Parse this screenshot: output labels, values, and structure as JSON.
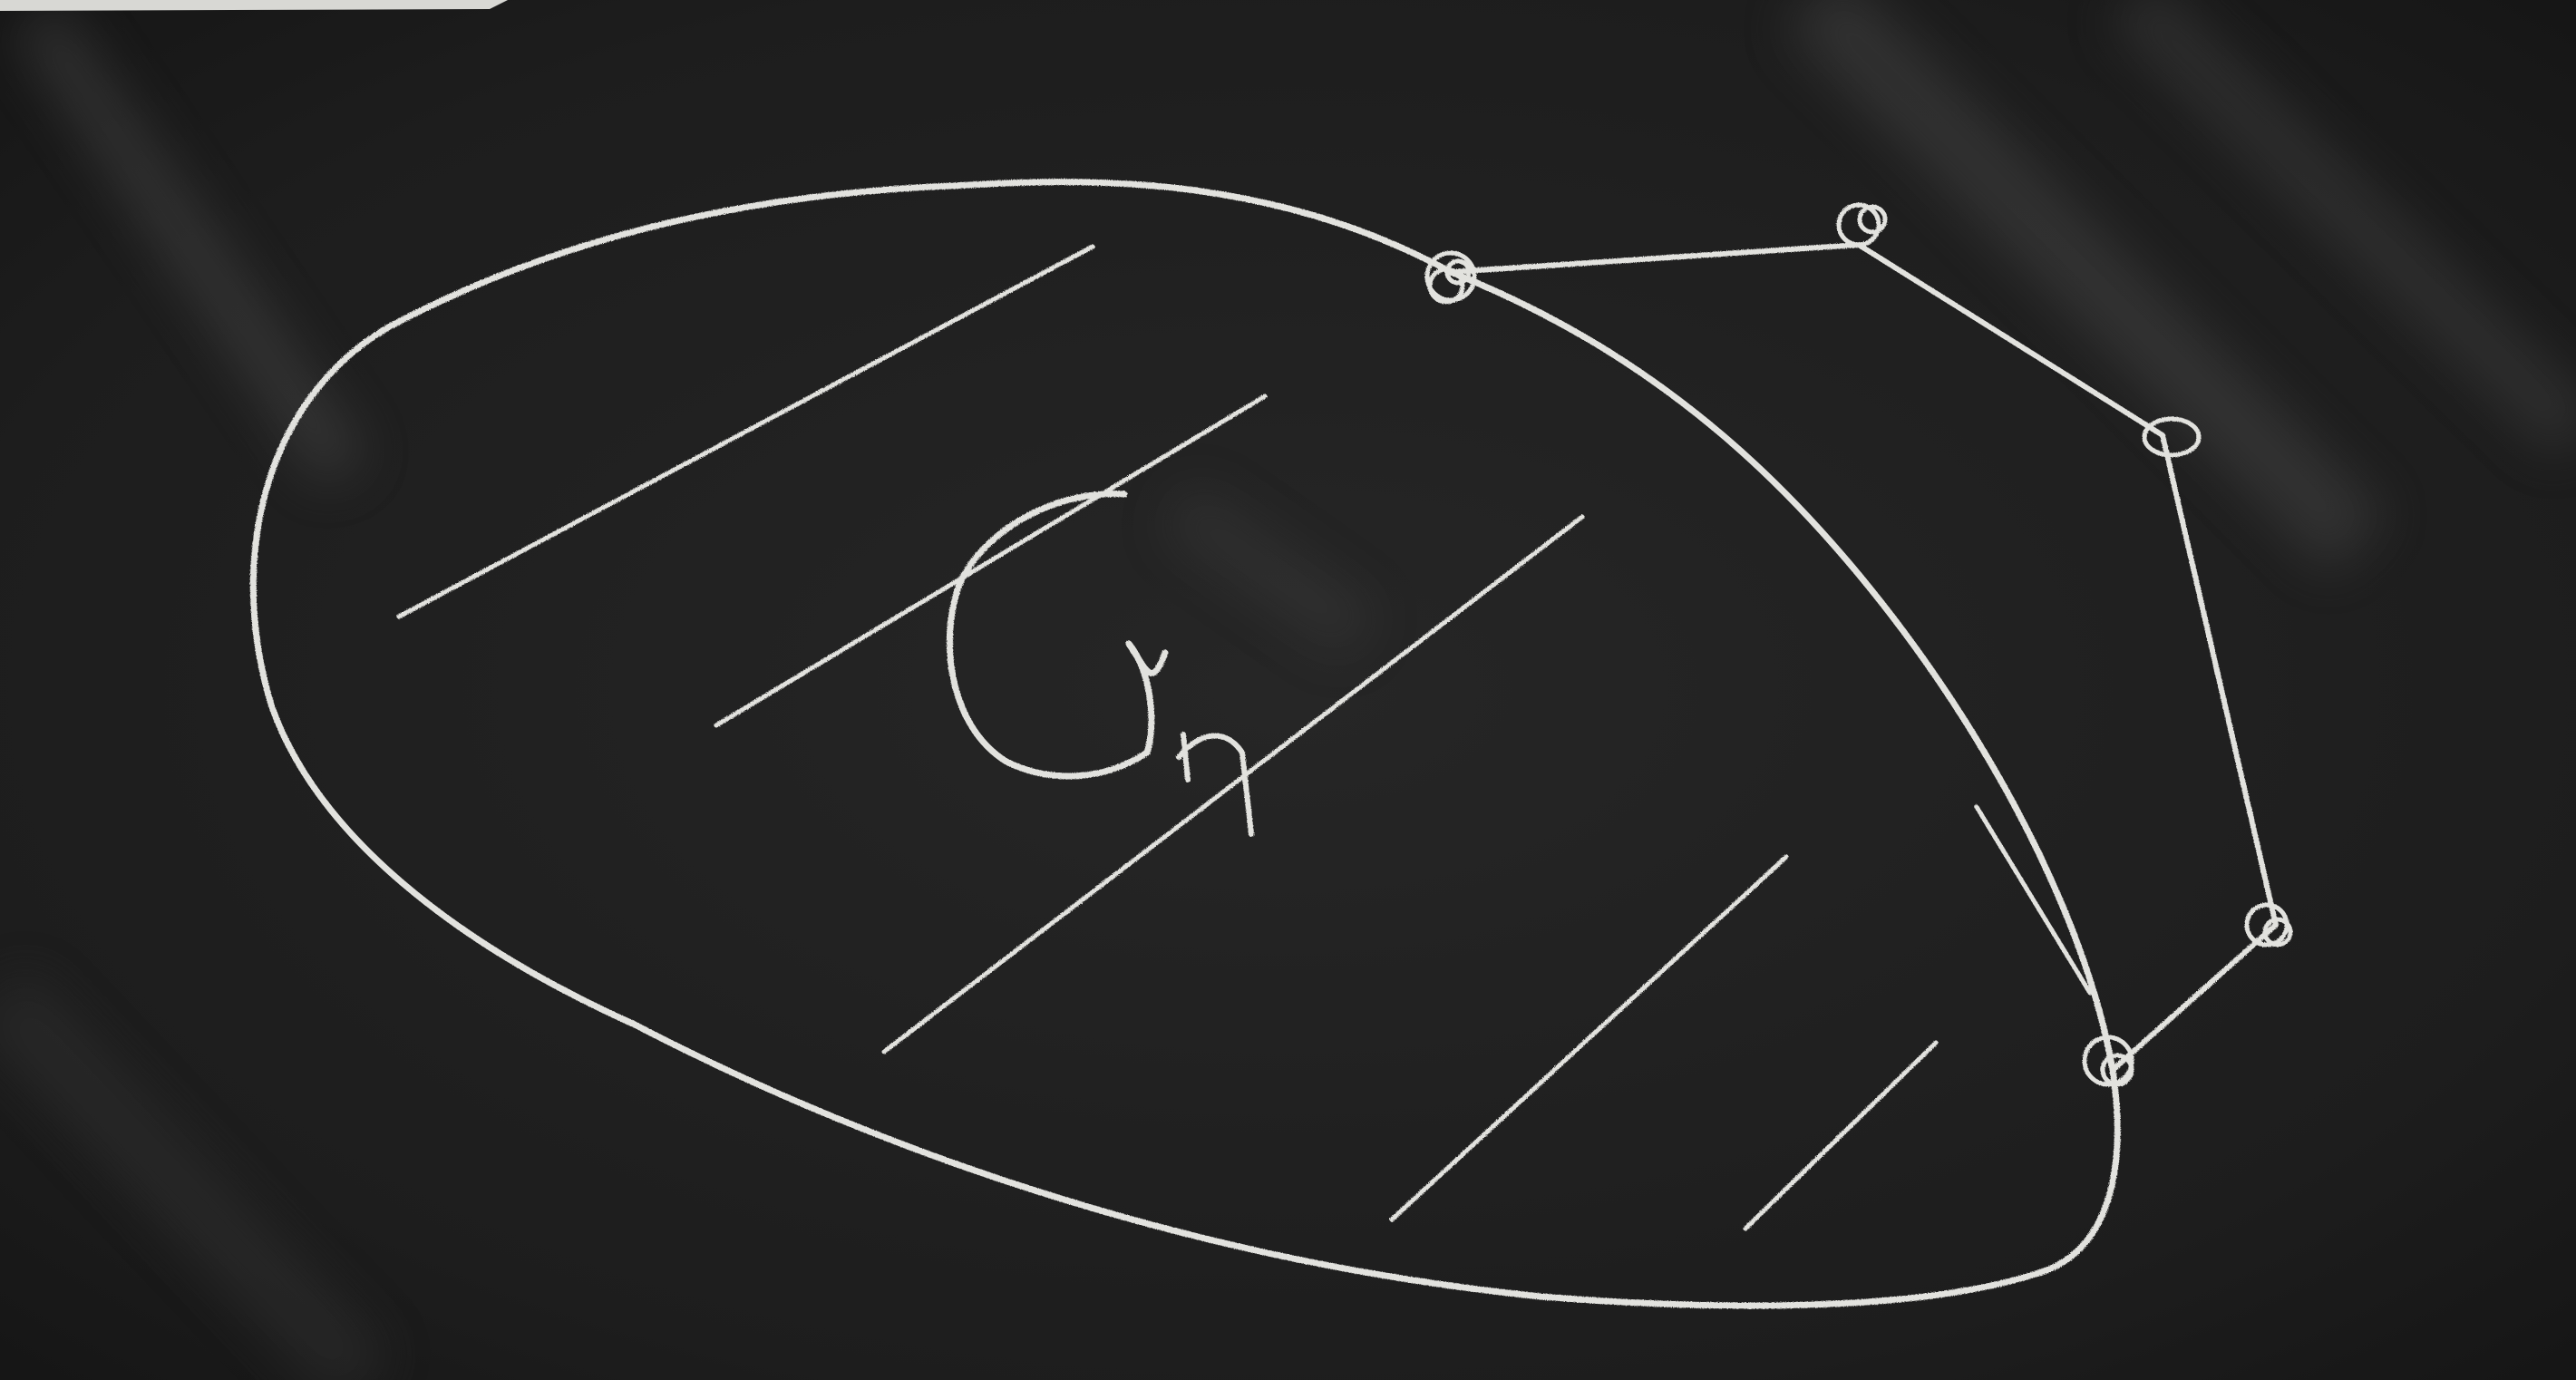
{
  "diagram": {
    "region_label": "Gn",
    "chalk_color": "#e2e2de",
    "board_color": "#1c1c1c"
  }
}
